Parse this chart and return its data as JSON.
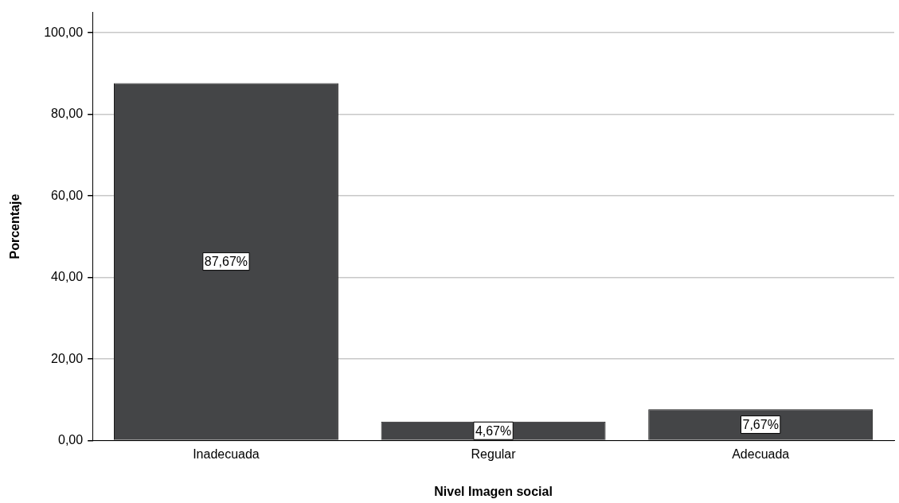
{
  "chart_data": {
    "type": "bar",
    "xlabel": "Nivel Imagen social",
    "ylabel": "Porcentaje",
    "categories": [
      "Inadecuada",
      "Regular",
      "Adecuada"
    ],
    "values": [
      87.67,
      4.67,
      7.67
    ],
    "value_labels": [
      "87,67%",
      "4,67%",
      "7,67%"
    ],
    "color": "#444547",
    "ylim": [
      0,
      105
    ],
    "yticks": [
      {
        "value": 0,
        "label": "0,00"
      },
      {
        "value": 20,
        "label": "20,00"
      },
      {
        "value": 40,
        "label": "40,00"
      },
      {
        "value": 60,
        "label": "60,00"
      },
      {
        "value": 80,
        "label": "80,00"
      },
      {
        "value": 100,
        "label": "100,00"
      }
    ],
    "grid": "y",
    "legend": false
  }
}
